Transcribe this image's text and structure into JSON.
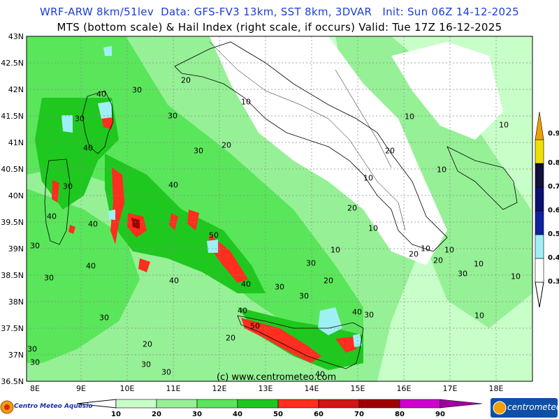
{
  "header": {
    "line1": "WRF-ARW 8km/51lev  Data: GFS-FV3 13km, SST 8km, 3DVAR   Init: Sun 06Z 14-12-2025",
    "line2": "MTS (bottom scale) & Hail Index (right scale, if occurs) Valid: Tue 17Z 16-12-2025"
  },
  "map": {
    "lat_labels": [
      "43N",
      "42.5N",
      "42N",
      "41.5N",
      "41N",
      "40.5N",
      "40N",
      "39.5N",
      "39N",
      "38.5N",
      "38N",
      "37.5N",
      "37N",
      "36.5N"
    ],
    "lon_labels": [
      "8E",
      "9E",
      "10E",
      "11E",
      "12E",
      "13E",
      "14E",
      "15E",
      "16E",
      "17E",
      "18E"
    ],
    "contour_labels": [
      "20",
      "30",
      "10",
      "40",
      "30",
      "30",
      "20",
      "10",
      "10",
      "40",
      "30",
      "20",
      "10",
      "10",
      "40",
      "30",
      "40",
      "10",
      "20",
      "10",
      "30",
      "40",
      "50",
      "10",
      "10",
      "20",
      "30",
      "20",
      "10",
      "30",
      "40",
      "40",
      "30",
      "30",
      "30",
      "10",
      "30",
      "40",
      "20",
      "30",
      "20",
      "30",
      "40",
      "50",
      "40",
      "20",
      "30",
      "30",
      "30",
      "40",
      "10"
    ],
    "credit": "(c) www.centrometeo.com"
  },
  "mts_scale": {
    "labels": [
      "10",
      "20",
      "30",
      "40",
      "50",
      "60",
      "70",
      "80",
      "90"
    ],
    "colors": [
      "#c8ffc8",
      "#96f096",
      "#5ae65a",
      "#1ec81e",
      "#ff2e1e",
      "#d21414",
      "#a00000",
      "#d000d0",
      "#a000a0"
    ]
  },
  "hail_scale": {
    "labels": [
      "0.3",
      "0.4",
      "0.5",
      "0.6",
      "0.7",
      "0.8",
      "0.9"
    ],
    "colors": [
      "#ffffff",
      "#9ff0f5",
      "#1020a0",
      "#0a0f70",
      "#10103a",
      "#f0e000",
      "#f0a000"
    ]
  },
  "logos": {
    "left_text": "Centro Meteo Aquesio",
    "right_text": "centrometeo"
  }
}
